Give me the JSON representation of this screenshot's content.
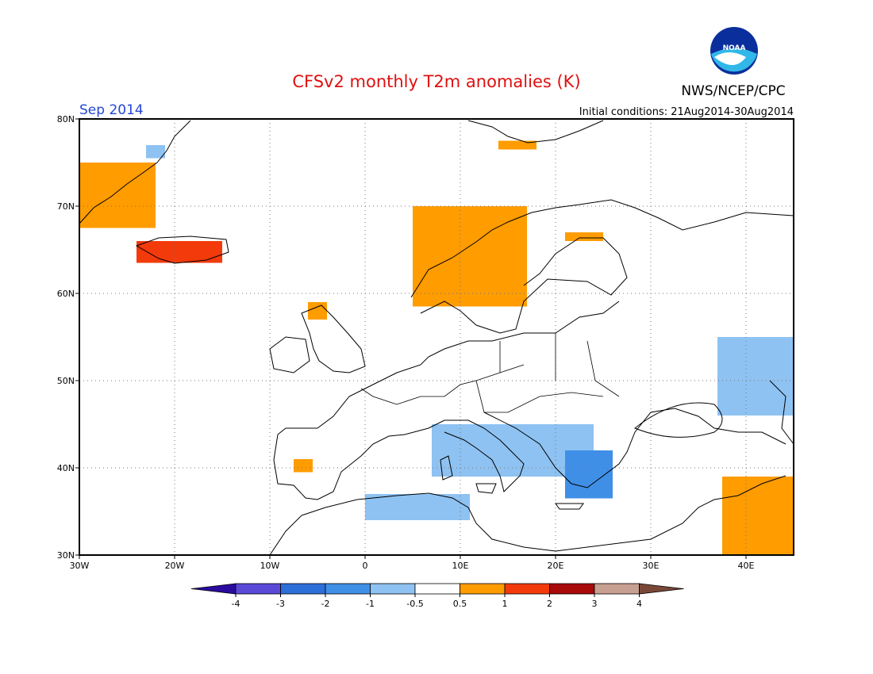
{
  "title": "CFSv2 monthly T2m anomalies (K)",
  "agency": "NWS/NCEP/CPC",
  "logo_text": "NOAA",
  "forecast_month": "Sep 2014",
  "initial_conditions": "Initial conditions: 21Aug2014-30Aug2014",
  "map": {
    "lon_range": [
      -30,
      45
    ],
    "lat_range": [
      30,
      80
    ],
    "lat_labels": [
      {
        "lat": 80,
        "label": "80N"
      },
      {
        "lat": 70,
        "label": "70N"
      },
      {
        "lat": 60,
        "label": "60N"
      },
      {
        "lat": 50,
        "label": "50N"
      },
      {
        "lat": 40,
        "label": "40N"
      },
      {
        "lat": 30,
        "label": "30N"
      }
    ],
    "lon_labels": [
      {
        "lon": -30,
        "label": "30W"
      },
      {
        "lon": -20,
        "label": "20W"
      },
      {
        "lon": -10,
        "label": "10W"
      },
      {
        "lon": 0,
        "label": "0"
      },
      {
        "lon": 10,
        "label": "10E"
      },
      {
        "lon": 20,
        "label": "20E"
      },
      {
        "lon": 30,
        "label": "30E"
      },
      {
        "lon": 40,
        "label": "40E"
      }
    ],
    "grid": "dotted"
  },
  "colorbar": {
    "labels": [
      "-4",
      "-3",
      "-2",
      "-1",
      "-0.5",
      "0.5",
      "1",
      "2",
      "3",
      "4"
    ],
    "colors": [
      "#2a0b9e",
      "#5a49d6",
      "#2d6fd8",
      "#3f8fe6",
      "#8ec2f2",
      "#ffffff",
      "#ff9c00",
      "#f33a0a",
      "#a80a0a",
      "#c8a092",
      "#7a4838"
    ]
  },
  "anomalies": [
    {
      "name": "greenland-east-coast",
      "value": 0.8,
      "lon": [
        -30,
        -22
      ],
      "lat": [
        67.5,
        75
      ]
    },
    {
      "name": "greenland-cold-spot",
      "value": -0.7,
      "lon": [
        -23,
        -21
      ],
      "lat": [
        75.5,
        77
      ]
    },
    {
      "name": "iceland",
      "value": 1.5,
      "lon": [
        -24,
        -15
      ],
      "lat": [
        63.5,
        66
      ]
    },
    {
      "name": "svalbard",
      "value": 0.8,
      "lon": [
        14,
        18
      ],
      "lat": [
        76.5,
        77.5
      ]
    },
    {
      "name": "norway",
      "value": 0.8,
      "lon": [
        5,
        17
      ],
      "lat": [
        58.5,
        70
      ]
    },
    {
      "name": "finland-north",
      "value": 0.8,
      "lon": [
        21,
        25
      ],
      "lat": [
        66,
        67
      ]
    },
    {
      "name": "scotland",
      "value": 0.8,
      "lon": [
        -6,
        -4
      ],
      "lat": [
        57,
        59
      ]
    },
    {
      "name": "iberia-west",
      "value": 0.8,
      "lon": [
        -7.5,
        -5.5
      ],
      "lat": [
        39.5,
        41
      ]
    },
    {
      "name": "italy-balkans",
      "value": -0.7,
      "lon": [
        7,
        24
      ],
      "lat": [
        39,
        45
      ]
    },
    {
      "name": "greece-cold",
      "value": -1.5,
      "lon": [
        21,
        26
      ],
      "lat": [
        36.5,
        42
      ]
    },
    {
      "name": "north-africa",
      "value": -0.7,
      "lon": [
        0,
        11
      ],
      "lat": [
        34,
        37
      ]
    },
    {
      "name": "russia-east",
      "value": -0.7,
      "lon": [
        37,
        45
      ],
      "lat": [
        46,
        55
      ]
    },
    {
      "name": "turkey-east",
      "value": 0.8,
      "lon": [
        37.5,
        45
      ],
      "lat": [
        30,
        39
      ]
    }
  ]
}
